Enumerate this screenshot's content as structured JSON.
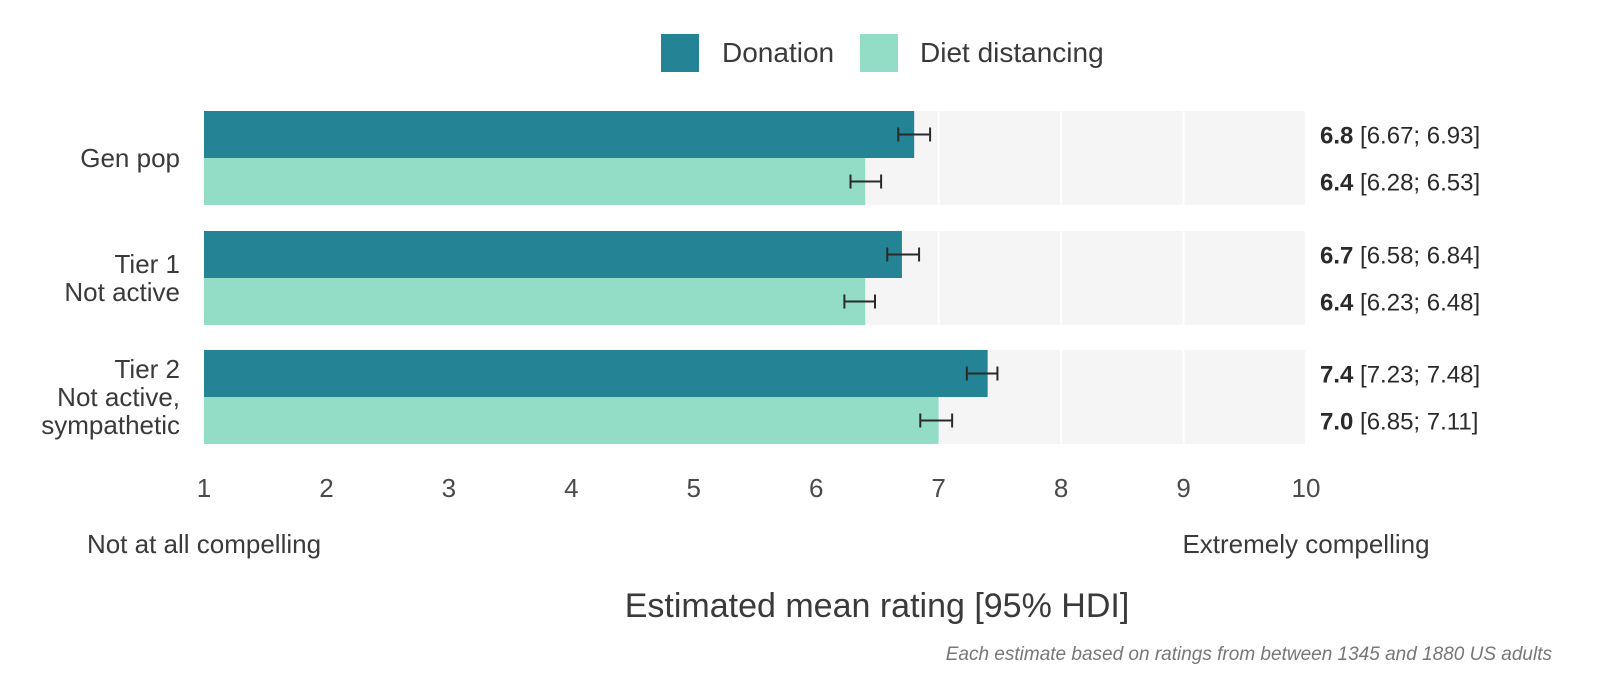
{
  "chart_data": {
    "type": "bar",
    "orientation": "horizontal",
    "categories": [
      [
        "Gen pop"
      ],
      [
        "Tier 1",
        "Not active"
      ],
      [
        "Tier 2",
        "Not active,",
        "sympathetic"
      ]
    ],
    "series": [
      {
        "name": "Donation",
        "color": "#248496",
        "values": [
          6.8,
          6.7,
          7.4
        ],
        "ci_low": [
          6.67,
          6.58,
          7.23
        ],
        "ci_high": [
          6.93,
          6.84,
          7.48
        ],
        "labels": [
          "6.8",
          "6.7",
          "7.4"
        ],
        "ci_labels": [
          "[6.67; 6.93]",
          "[6.58; 6.84]",
          "[7.23; 7.48]"
        ]
      },
      {
        "name": "Diet distancing",
        "color": "#93dcc6",
        "values": [
          6.4,
          6.4,
          7.0
        ],
        "ci_low": [
          6.28,
          6.23,
          6.85
        ],
        "ci_high": [
          6.53,
          6.48,
          7.11
        ],
        "labels": [
          "6.4",
          "6.4",
          "7.0"
        ],
        "ci_labels": [
          "[6.28; 6.53]",
          "[6.23; 6.48]",
          "[6.85; 7.11]"
        ]
      }
    ],
    "xlim": [
      1,
      10
    ],
    "xticks": [
      "1",
      "2",
      "3",
      "4",
      "5",
      "6",
      "7",
      "8",
      "9",
      "10"
    ],
    "xlabel": "Estimated mean rating [95% HDI]",
    "scale_low_label": "Not at all compelling",
    "scale_high_label": "Extremely compelling",
    "legend_position": "top-center",
    "grid": true,
    "background_color": "#f5f5f5",
    "note": "Each estimate based on ratings from between 1345 and 1880 US adults"
  }
}
